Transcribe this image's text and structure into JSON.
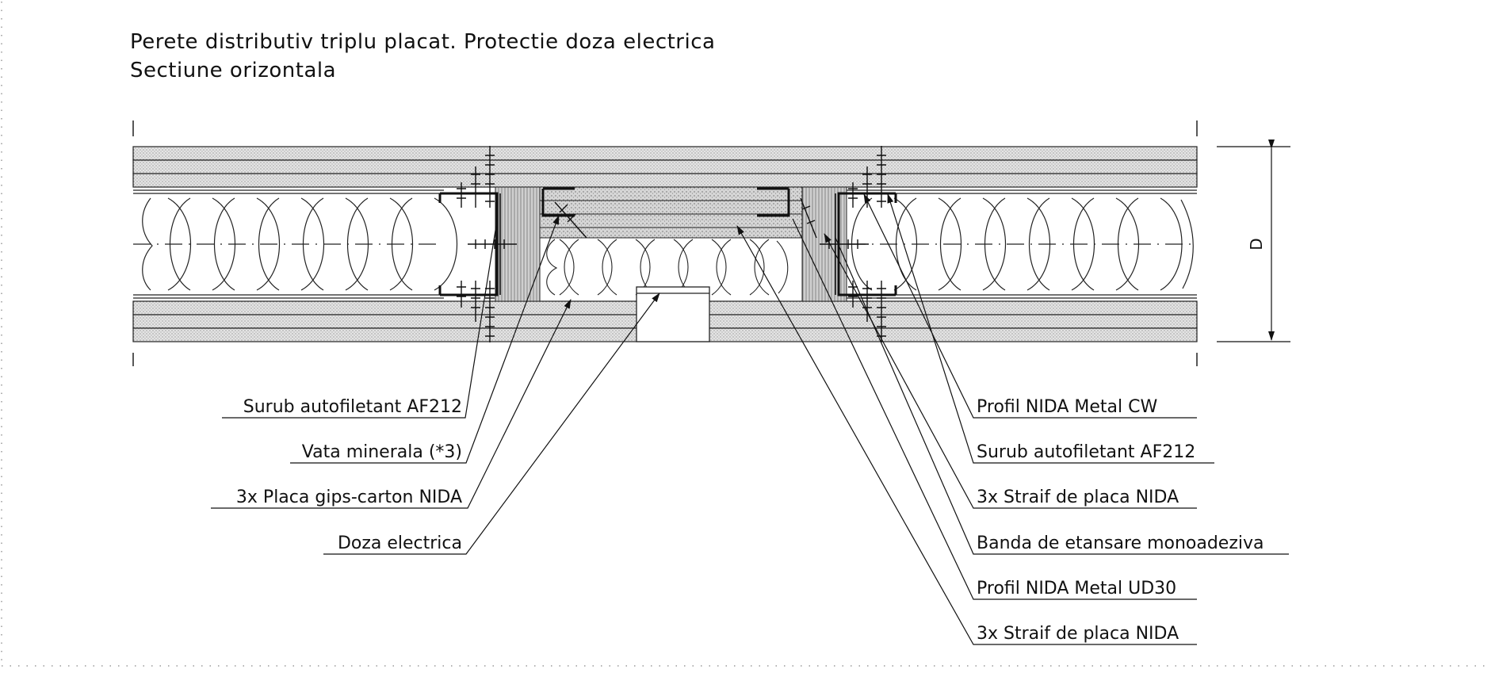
{
  "title": {
    "line1": "Perete distributiv triplu placat. Protectie doza electrica",
    "line2": "Sectiune orizontala"
  },
  "dimension": {
    "label": "D"
  },
  "labels_left": [
    {
      "id": "surub-left",
      "text": "Surub autofiletant AF212"
    },
    {
      "id": "vata",
      "text": "Vata minerala (*3)"
    },
    {
      "id": "placa",
      "text": "3x Placa gips-carton NIDA"
    },
    {
      "id": "doza",
      "text": "Doza electrica"
    }
  ],
  "labels_right": [
    {
      "id": "profil-cw",
      "text": "Profil NIDA Metal CW"
    },
    {
      "id": "surub-right",
      "text": "Surub autofiletant AF212"
    },
    {
      "id": "straif-1",
      "text": "3x Straif de placa NIDA"
    },
    {
      "id": "banda",
      "text": "Banda de etansare monoadeziva"
    },
    {
      "id": "profil-ud30",
      "text": "Profil NIDA Metal UD30"
    },
    {
      "id": "straif-2",
      "text": "3x Straif de placa NIDA"
    }
  ],
  "colors": {
    "line": "#111111",
    "board": "#d9d9d9",
    "frame": "#999999"
  }
}
